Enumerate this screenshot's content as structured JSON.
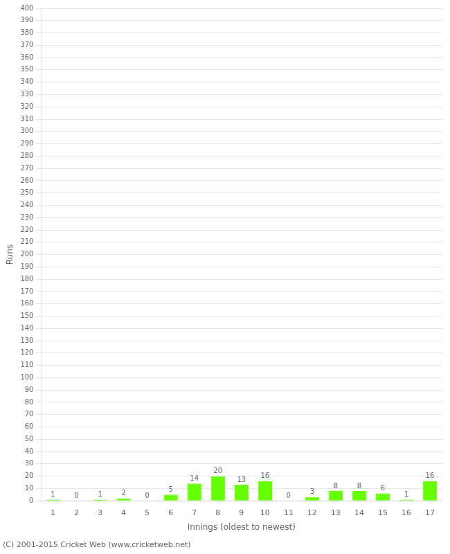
{
  "chart_data": {
    "type": "bar",
    "x_label": "Innings (oldest to newest)",
    "y_label": "Runs",
    "annotations": [
      "(C) 2001-2015 Cricket Web (www.cricketweb.net)"
    ],
    "categories": [
      "1",
      "2",
      "3",
      "4",
      "5",
      "6",
      "7",
      "8",
      "9",
      "10",
      "11",
      "12",
      "13",
      "14",
      "15",
      "16",
      "17"
    ],
    "values": [
      1,
      0,
      1,
      2,
      0,
      5,
      14,
      20,
      13,
      16,
      0,
      3,
      8,
      8,
      6,
      1,
      16
    ],
    "color": "#66ff00",
    "ylim": [
      0,
      400
    ],
    "yticks": [
      0,
      10,
      20,
      30,
      40,
      50,
      60,
      70,
      80,
      90,
      100,
      110,
      120,
      130,
      140,
      150,
      160,
      170,
      180,
      190,
      200,
      210,
      220,
      230,
      240,
      250,
      260,
      270,
      280,
      290,
      300,
      310,
      320,
      330,
      340,
      350,
      360,
      370,
      380,
      390,
      400
    ],
    "grid": true,
    "data_labels": true
  }
}
